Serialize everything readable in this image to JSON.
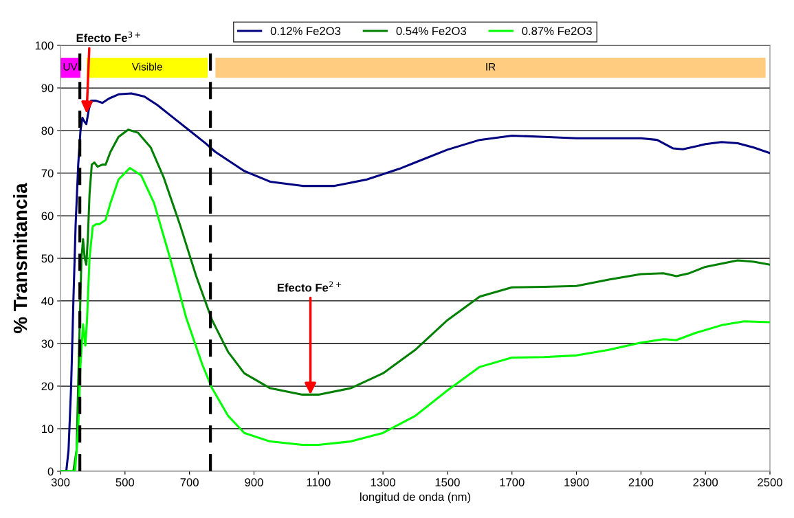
{
  "chart_data": {
    "type": "line",
    "xlabel": "longitud de onda (nm)",
    "ylabel": "% Transmitancia",
    "xlim": [
      300,
      2500
    ],
    "xticks": [
      300,
      500,
      700,
      900,
      1100,
      1300,
      1500,
      1700,
      1900,
      2100,
      2300,
      2500
    ],
    "ylim": [
      0,
      100
    ],
    "yticks": [
      0,
      10,
      20,
      30,
      40,
      50,
      60,
      70,
      80,
      90,
      100
    ],
    "grid": "y",
    "legend": "top",
    "marker": "none",
    "line_style": "solid",
    "series": [
      {
        "name": "0.12% Fe2O3",
        "color": "#000080",
        "x": [
          300,
          318,
          325,
          333,
          340,
          347,
          355,
          362,
          368,
          375,
          380,
          388,
          395,
          410,
          430,
          450,
          480,
          520,
          560,
          600,
          650,
          700,
          750,
          780,
          820,
          870,
          950,
          1050,
          1150,
          1250,
          1350,
          1400,
          1500,
          1600,
          1700,
          1800,
          1900,
          2000,
          2100,
          2150,
          2200,
          2230,
          2300,
          2350,
          2400,
          2450,
          2500
        ],
        "values": [
          0,
          0,
          5,
          20,
          40,
          58,
          72,
          80,
          83,
          82,
          81.5,
          85,
          87,
          87,
          86.5,
          87.5,
          88.5,
          88.7,
          88,
          86,
          83,
          80,
          77,
          75,
          73,
          70.5,
          68,
          67,
          67,
          68.5,
          71,
          72.5,
          75.5,
          77.8,
          78.8,
          78.5,
          78.2,
          78.2,
          78.2,
          77.8,
          75.8,
          75.6,
          76.8,
          77.3,
          77,
          76,
          74.7
        ]
      },
      {
        "name": "0.54% Fe2O3",
        "color": "#008000",
        "x": [
          300,
          340,
          350,
          358,
          365,
          370,
          375,
          380,
          385,
          390,
          397,
          405,
          415,
          430,
          440,
          455,
          480,
          510,
          540,
          580,
          620,
          670,
          720,
          770,
          820,
          870,
          950,
          1050,
          1100,
          1200,
          1300,
          1400,
          1500,
          1600,
          1700,
          1800,
          1900,
          2000,
          2100,
          2170,
          2210,
          2250,
          2300,
          2400,
          2450,
          2500
        ],
        "values": [
          0,
          0,
          5,
          30,
          50,
          54.5,
          50,
          48.5,
          55,
          65,
          72,
          72.5,
          71.5,
          72,
          72,
          75,
          78.5,
          80.2,
          79.5,
          76,
          69,
          58,
          46,
          35.5,
          28,
          23,
          19.5,
          18,
          18,
          19.5,
          23,
          28.5,
          35.5,
          41,
          43.2,
          43.3,
          43.5,
          45,
          46.3,
          46.5,
          45.8,
          46.5,
          48,
          49.5,
          49.2,
          48.5
        ]
      },
      {
        "name": "0.87% Fe2O3",
        "color": "#00ff00",
        "x": [
          300,
          345,
          355,
          362,
          370,
          377,
          382,
          390,
          400,
          410,
          420,
          440,
          455,
          480,
          515,
          550,
          590,
          640,
          690,
          740,
          770,
          820,
          870,
          950,
          1050,
          1100,
          1200,
          1300,
          1400,
          1500,
          1600,
          1700,
          1800,
          1900,
          2000,
          2100,
          2170,
          2210,
          2270,
          2350,
          2420,
          2500
        ],
        "values": [
          0,
          0,
          10,
          25,
          34.5,
          29.5,
          35,
          50,
          57.5,
          58,
          58,
          59,
          63,
          68.5,
          71.2,
          69.5,
          63,
          50,
          36,
          25,
          19.5,
          13,
          9,
          7,
          6.2,
          6.2,
          7,
          9,
          13,
          19,
          24.5,
          26.7,
          26.8,
          27.2,
          28.5,
          30.2,
          31,
          30.8,
          32.5,
          34.3,
          35.2,
          35
        ]
      }
    ],
    "ref_lines": [
      {
        "axis": "x",
        "value": 360,
        "color": "#000000",
        "line_style": "dashed"
      },
      {
        "axis": "x",
        "value": 765,
        "color": "#000000",
        "line_style": "dashed"
      }
    ],
    "bands": [
      {
        "axis": "x",
        "from": 300,
        "to": 360,
        "label": "UV",
        "color": "#ff00ff"
      },
      {
        "axis": "x",
        "from": 383,
        "to": 755,
        "label": "Visible",
        "color": "#ffff00"
      },
      {
        "axis": "x",
        "from": 782,
        "to": 2485,
        "label": "IR",
        "color": "#ffcc80"
      }
    ],
    "annotations": [
      {
        "text": "Efecto Fe$^{3+}$",
        "x": 381,
        "y": 84
      },
      {
        "text": "Efecto Fe$^{2+}$",
        "x": 1075,
        "y": 18
      }
    ]
  }
}
